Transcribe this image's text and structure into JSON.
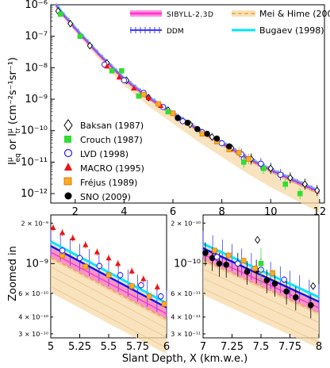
{
  "chart_data": [
    {
      "type": "scatter",
      "panel": "top",
      "x_ticks": [
        "2",
        "4",
        "6",
        "8",
        "10",
        "12"
      ],
      "y_ticks": [
        "10⁻⁶",
        "10⁻⁷",
        "10⁻⁸",
        "10⁻⁹",
        "10⁻¹⁰",
        "10⁻¹¹",
        "10⁻¹²"
      ],
      "ylabel": "I^μ_eq or I^μ_tr (cm⁻²s⁻¹sr⁻¹)",
      "ylabel_main": "I",
      "ylabel_eq": "eq",
      "ylabel_or": "or",
      "ylabel_tr": "tr",
      "ylabel_mu": "μ",
      "ylabel_units": "(cm⁻²s⁻¹sr⁻¹)",
      "xlim": [
        1,
        12.2
      ],
      "ylim_log10": [
        -12.3,
        -6
      ],
      "model_legend": [
        {
          "label": "SIBYLL-2.3D",
          "color": "#ff33cc",
          "style": "band"
        },
        {
          "label": "DDM",
          "color": "#3b3bff",
          "style": "hatched"
        },
        {
          "label": "Mei & Hime (2006)",
          "color": "#e8a33a",
          "style": "dashed"
        },
        {
          "label": "Bugaev (1998)",
          "color": "#00e5ff",
          "style": "solid"
        }
      ],
      "data_legend": [
        {
          "label": "Baksan (1987)",
          "marker": "diamond-open",
          "color": "#000000"
        },
        {
          "label": "Crouch (1987)",
          "marker": "square",
          "color": "#33dd33"
        },
        {
          "label": "LVD (1998)",
          "marker": "circle-open",
          "color": "#1f1fff"
        },
        {
          "label": "MACRO (1995)",
          "marker": "triangle",
          "color": "#ee1111"
        },
        {
          "label": "Fréjus (1989)",
          "marker": "square",
          "color": "#ffaa22"
        },
        {
          "label": "SNO (2009)",
          "marker": "circle",
          "color": "#000000"
        }
      ],
      "model_curve_log10": [
        {
          "x": 1.2,
          "y": -6.0
        },
        {
          "x": 1.5,
          "y": -6.3
        },
        {
          "x": 2.0,
          "y": -6.75
        },
        {
          "x": 3.0,
          "y": -7.6
        },
        {
          "x": 4.0,
          "y": -8.35
        },
        {
          "x": 5.0,
          "y": -8.95
        },
        {
          "x": 6.0,
          "y": -9.45
        },
        {
          "x": 7.0,
          "y": -9.95
        },
        {
          "x": 8.0,
          "y": -10.4
        },
        {
          "x": 9.0,
          "y": -10.85
        },
        {
          "x": 10.0,
          "y": -11.25
        },
        {
          "x": 11.0,
          "y": -11.6
        },
        {
          "x": 12.0,
          "y": -11.95
        }
      ],
      "series": [
        {
          "name": "Baksan (1987)",
          "points": [
            [
              1.3,
              -6.2
            ],
            [
              1.8,
              -6.6
            ],
            [
              2.6,
              -7.3
            ],
            [
              3.3,
              -7.85
            ],
            [
              4.1,
              -8.4
            ],
            [
              5.0,
              -8.95
            ],
            [
              5.8,
              -9.35
            ],
            [
              6.7,
              -9.8
            ],
            [
              7.6,
              -10.2
            ],
            [
              8.4,
              -10.55
            ],
            [
              9.2,
              -10.9
            ],
            [
              10.0,
              -11.2
            ],
            [
              10.8,
              -11.5
            ],
            [
              11.4,
              -11.7
            ],
            [
              11.9,
              -11.9
            ]
          ]
        },
        {
          "name": "Crouch (1987)",
          "points": [
            [
              1.4,
              -6.3
            ],
            [
              2.2,
              -7.0
            ],
            [
              3.5,
              -8.1
            ],
            [
              3.9,
              -8.1
            ],
            [
              4.6,
              -8.9
            ],
            [
              5.8,
              -9.4
            ],
            [
              8.9,
              -11.0
            ],
            [
              9.7,
              -11.2
            ],
            [
              10.6,
              -11.7
            ],
            [
              11.2,
              -12.0
            ]
          ]
        },
        {
          "name": "LVD (1998)",
          "points": [
            [
              3.2,
              -7.9
            ],
            [
              4.0,
              -8.4
            ],
            [
              4.8,
              -8.8
            ],
            [
              5.6,
              -9.25
            ],
            [
              6.4,
              -9.7
            ],
            [
              7.2,
              -10.05
            ],
            [
              8.0,
              -10.4
            ],
            [
              8.8,
              -10.75
            ],
            [
              9.6,
              -11.05
            ],
            [
              10.4,
              -11.4
            ]
          ]
        },
        {
          "name": "MACRO (1995)",
          "points": [
            [
              3.3,
              -7.95
            ],
            [
              3.8,
              -8.3
            ],
            [
              4.4,
              -8.65
            ],
            [
              5.0,
              -8.95
            ],
            [
              5.5,
              -9.2
            ]
          ]
        },
        {
          "name": "Fréjus (1989)",
          "points": [
            [
              4.8,
              -8.85
            ],
            [
              5.4,
              -9.15
            ],
            [
              6.0,
              -9.45
            ],
            [
              6.6,
              -9.75
            ],
            [
              7.2,
              -10.1
            ],
            [
              7.8,
              -10.35
            ],
            [
              8.3,
              -10.6
            ],
            [
              8.7,
              -10.7
            ],
            [
              9.1,
              -10.9
            ]
          ]
        },
        {
          "name": "SNO (2009)",
          "points": [
            [
              6.2,
              -9.6
            ],
            [
              6.6,
              -9.75
            ],
            [
              7.0,
              -9.95
            ],
            [
              7.4,
              -10.1
            ],
            [
              7.8,
              -10.25
            ],
            [
              8.3,
              -10.5
            ]
          ]
        }
      ]
    },
    {
      "type": "scatter",
      "panel": "bottom-left",
      "ylabel": "Zoomed in",
      "x_ticks": [
        "5",
        "5.25",
        "5.5",
        "5.75",
        "6"
      ],
      "y_ticks": [
        "2 × 10⁻⁹",
        "10⁻⁹",
        "6 × 10⁻¹⁰",
        "4 × 10⁻¹⁰",
        "3 × 10⁻¹⁰"
      ],
      "xlim": [
        5,
        6
      ],
      "ylim": [
        2.8e-10,
        2.3e-09
      ],
      "model_curve": [
        {
          "x": 5.0,
          "y": 1.35e-09
        },
        {
          "x": 6.0,
          "y": 4.7e-10
        }
      ],
      "series": [
        {
          "name": "MACRO (1995)",
          "points": [
            [
              5.02,
              1.85e-09
            ],
            [
              5.1,
              1.7e-09
            ],
            [
              5.19,
              1.55e-09
            ],
            [
              5.3,
              1.38e-09
            ],
            [
              5.4,
              1.22e-09
            ],
            [
              5.5,
              1.1e-09
            ],
            [
              5.58,
              1e-09
            ],
            [
              5.7,
              8.8e-10
            ],
            [
              5.8,
              7.7e-10
            ],
            [
              5.92,
              6.7e-10
            ]
          ]
        },
        {
          "name": "Fréjus (1989)",
          "points": [
            [
              5.1,
              1.15e-09
            ],
            [
              5.3,
              9.5e-10
            ],
            [
              5.5,
              8.2e-10
            ],
            [
              5.7,
              6.8e-10
            ],
            [
              5.85,
              5.7e-10
            ],
            [
              5.98,
              5e-10
            ]
          ]
        },
        {
          "name": "LVD (1998)",
          "points": [
            [
              5.1,
              1.25e-09
            ],
            [
              5.25,
              1.1e-09
            ],
            [
              5.42,
              9.6e-10
            ],
            [
              5.6,
              8.2e-10
            ],
            [
              5.78,
              6.9e-10
            ],
            [
              5.95,
              5.7e-10
            ]
          ]
        }
      ]
    },
    {
      "type": "scatter",
      "panel": "bottom-right",
      "x_ticks": [
        "7",
        "7.25",
        "7.5",
        "7.75",
        "8"
      ],
      "y_ticks": [
        "2 × 10⁻¹⁰",
        "10⁻¹⁰",
        "6 × 10⁻¹¹",
        "4 × 10⁻¹¹",
        "3 × 10⁻¹¹"
      ],
      "xlim": [
        7,
        8
      ],
      "ylim": [
        2.8e-11,
        2.3e-10
      ],
      "xlabel": "Slant Depth, X (km.w.e.)",
      "model_curve": [
        {
          "x": 7.0,
          "y": 1.3e-10
        },
        {
          "x": 8.0,
          "y": 5.2e-11
        }
      ],
      "series": [
        {
          "name": "SNO (2009)",
          "points": [
            [
              7.02,
              1.2e-10
            ],
            [
              7.08,
              1.1e-10
            ],
            [
              7.14,
              1e-10
            ],
            [
              7.2,
              9.8e-11
            ],
            [
              7.3,
              1e-10
            ],
            [
              7.38,
              8.7e-11
            ],
            [
              7.46,
              8.9e-11
            ],
            [
              7.55,
              7.5e-11
            ],
            [
              7.62,
              7.1e-11
            ],
            [
              7.72,
              6.2e-11
            ],
            [
              7.8,
              5.6e-11
            ],
            [
              7.93,
              4.9e-11
            ]
          ]
        },
        {
          "name": "Fréjus (1989)",
          "points": [
            [
              7.1,
              1.25e-10
            ],
            [
              7.22,
              1.15e-10
            ],
            [
              7.35,
              1.05e-10
            ],
            [
              7.45,
              9.2e-11
            ],
            [
              7.6,
              8.5e-11
            ]
          ]
        },
        {
          "name": "LVD (1998)",
          "points": [
            [
              7.12,
              1.12e-10
            ],
            [
              7.3,
              1e-10
            ],
            [
              7.5,
              9e-11
            ],
            [
              7.7,
              7.6e-11
            ]
          ]
        },
        {
          "name": "Baksan (1987)",
          "points": [
            [
              7.47,
              1.5e-10
            ],
            [
              7.95,
              6.8e-11
            ]
          ]
        },
        {
          "name": "Crouch (1987)",
          "points": [
            [
              7.5,
              1e-10
            ]
          ]
        }
      ]
    }
  ]
}
